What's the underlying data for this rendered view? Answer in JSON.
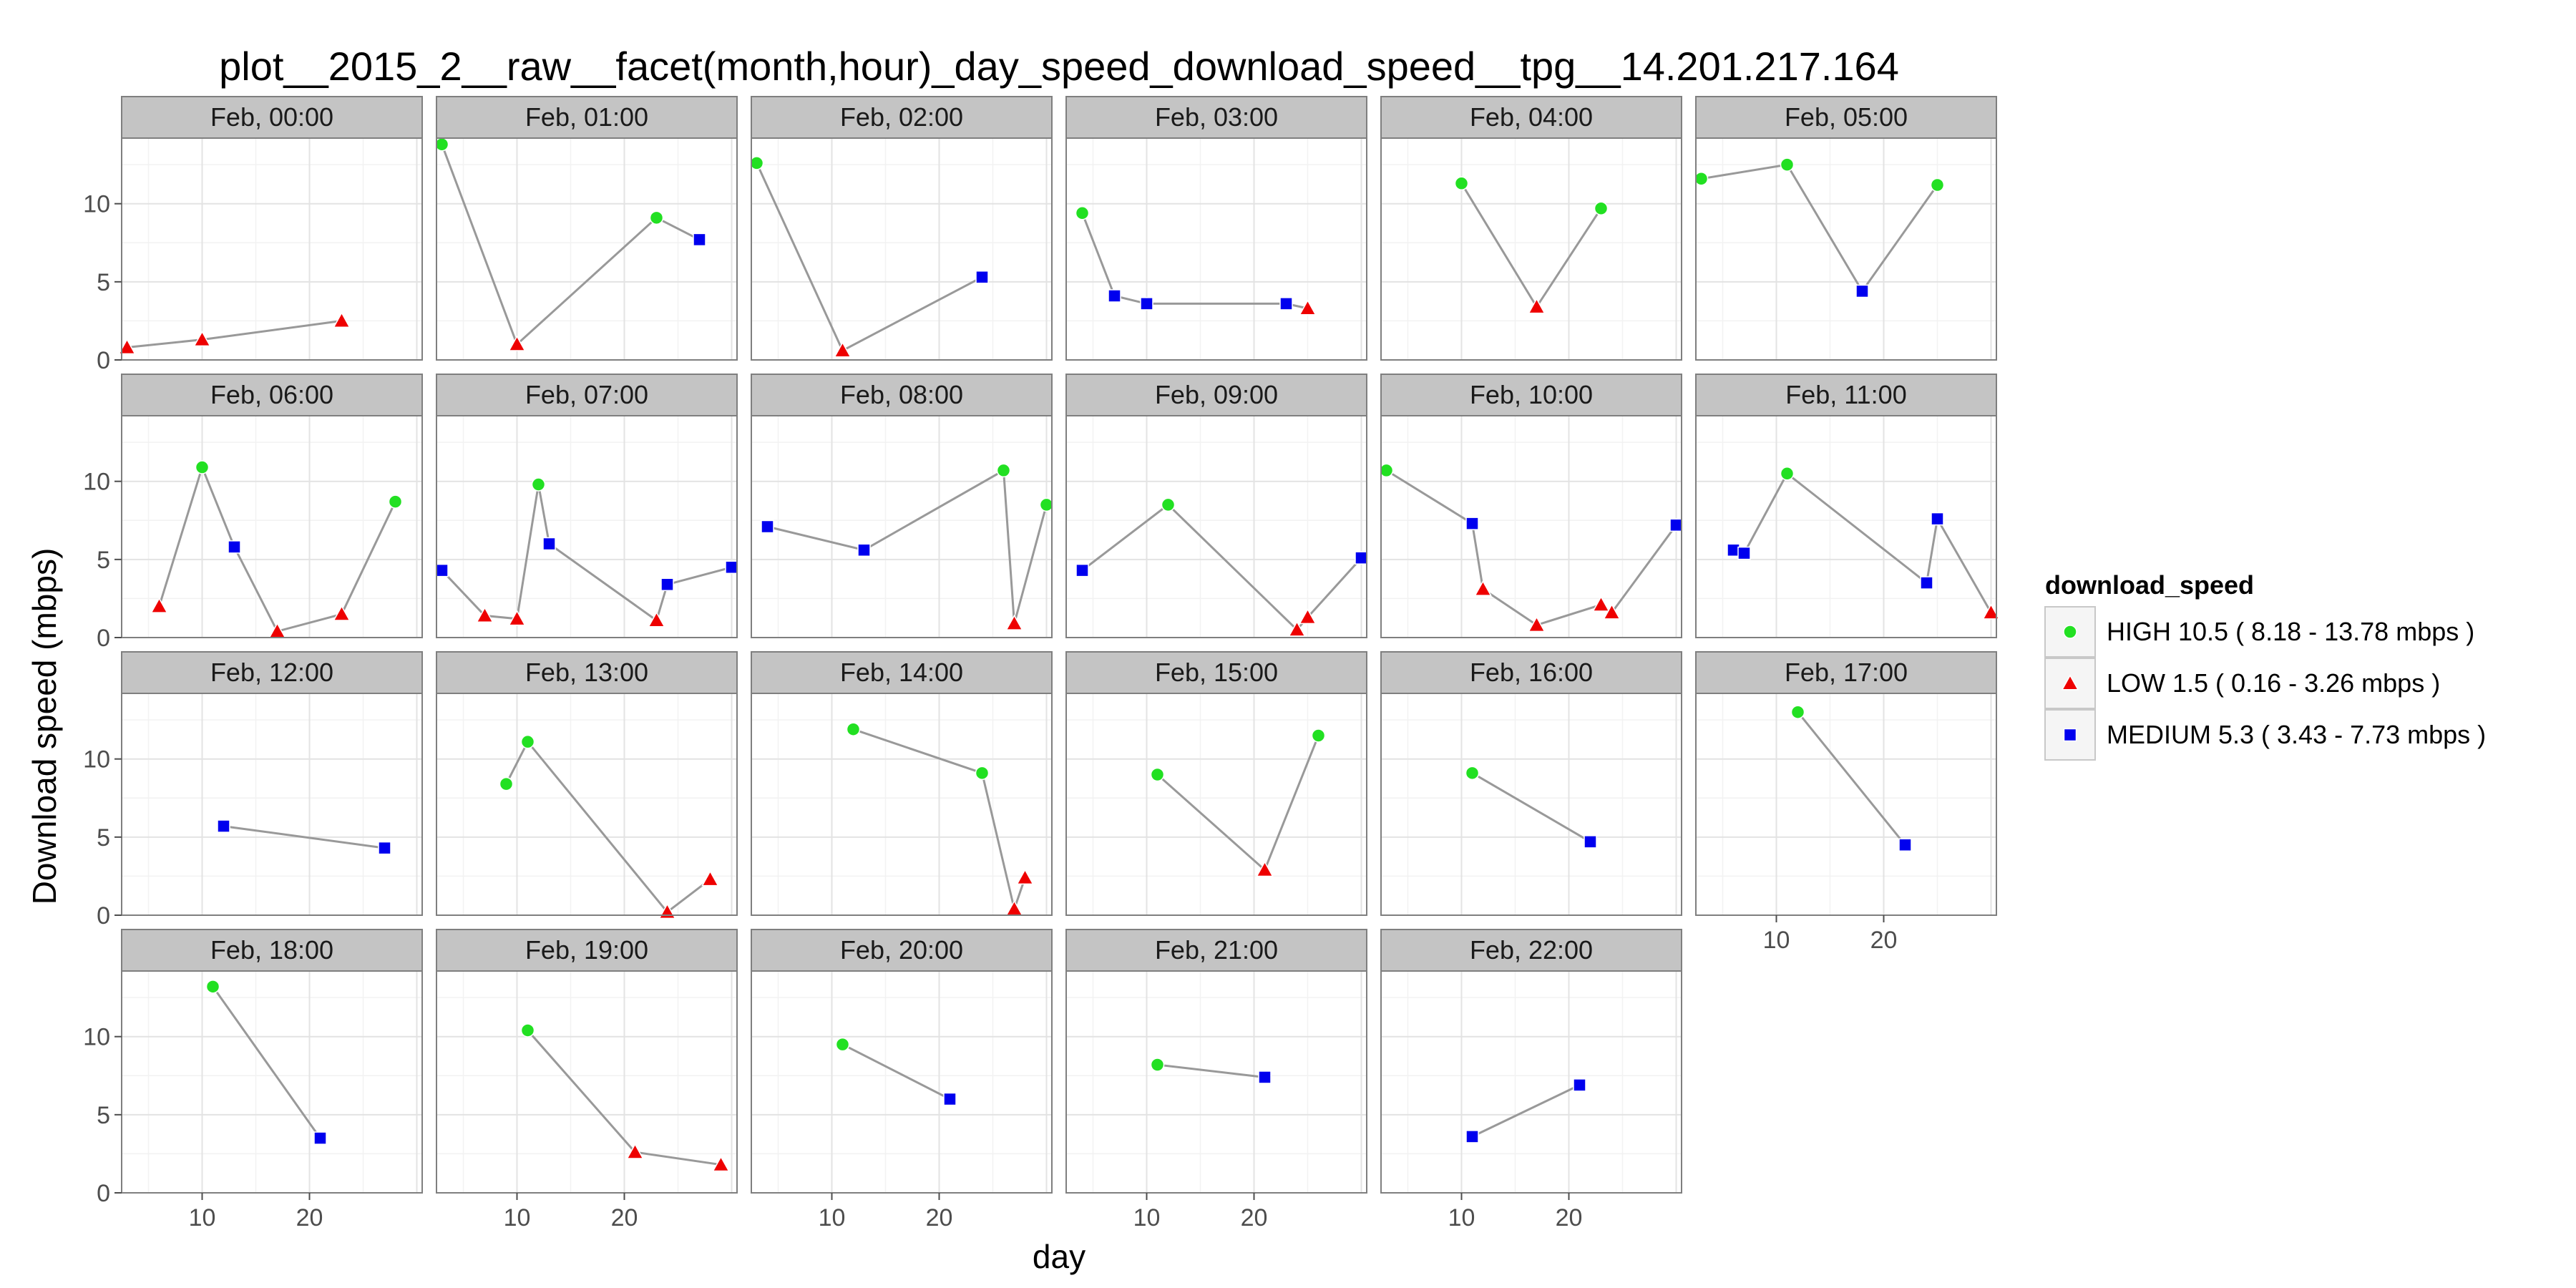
{
  "chart_data": {
    "type": "scatter",
    "title": "plot__2015_2__raw__facet(month,hour)_day_speed_download_speed__tpg__14.201.217.164",
    "xlabel": "day",
    "ylabel": "Download speed (mbps)",
    "xlim": [
      2.5,
      30.5
    ],
    "ylim": [
      0,
      14.2
    ],
    "x_ticks": [
      10,
      20
    ],
    "y_ticks": [
      0,
      5,
      10
    ],
    "grid": true,
    "facet_ncol": 6,
    "legend": {
      "title": "download_speed",
      "position": "right",
      "entries": [
        {
          "label": "HIGH 10.5 ( 8.18 - 13.78 mbps )",
          "color": "#22e022",
          "shape": "circle"
        },
        {
          "label": "LOW 1.5 ( 0.16 - 3.26 mbps )",
          "color": "#ee0000",
          "shape": "triangle"
        },
        {
          "label": "MEDIUM 5.3 ( 3.43 - 7.73 mbps )",
          "color": "#0000ee",
          "shape": "square"
        }
      ]
    },
    "line_color": "#999999",
    "panels": [
      {
        "label": "Feb, 00:00",
        "points": [
          [
            3,
            0.8,
            "LOW"
          ],
          [
            10,
            1.3,
            "LOW"
          ],
          [
            23,
            2.5,
            "LOW"
          ]
        ]
      },
      {
        "label": "Feb, 01:00",
        "points": [
          [
            3,
            13.8,
            "HIGH"
          ],
          [
            10,
            1.0,
            "LOW"
          ],
          [
            23,
            9.1,
            "HIGH"
          ],
          [
            27,
            7.7,
            "MEDIUM"
          ]
        ]
      },
      {
        "label": "Feb, 02:00",
        "points": [
          [
            3,
            12.6,
            "HIGH"
          ],
          [
            11,
            0.6,
            "LOW"
          ],
          [
            24,
            5.3,
            "MEDIUM"
          ]
        ]
      },
      {
        "label": "Feb, 03:00",
        "points": [
          [
            4,
            9.4,
            "HIGH"
          ],
          [
            7,
            4.1,
            "MEDIUM"
          ],
          [
            10,
            3.6,
            "MEDIUM"
          ],
          [
            23,
            3.6,
            "MEDIUM"
          ],
          [
            25,
            3.3,
            "LOW"
          ]
        ]
      },
      {
        "label": "Feb, 04:00",
        "points": [
          [
            10,
            11.3,
            "HIGH"
          ],
          [
            17,
            3.4,
            "LOW"
          ],
          [
            23,
            9.7,
            "HIGH"
          ]
        ]
      },
      {
        "label": "Feb, 05:00",
        "points": [
          [
            3,
            11.6,
            "HIGH"
          ],
          [
            11,
            12.5,
            "HIGH"
          ],
          [
            18,
            4.4,
            "MEDIUM"
          ],
          [
            25,
            11.2,
            "HIGH"
          ]
        ]
      },
      {
        "label": "Feb, 06:00",
        "points": [
          [
            6,
            2.0,
            "LOW"
          ],
          [
            10,
            10.9,
            "HIGH"
          ],
          [
            13,
            5.8,
            "MEDIUM"
          ],
          [
            17,
            0.4,
            "LOW"
          ],
          [
            23,
            1.5,
            "LOW"
          ],
          [
            28,
            8.7,
            "HIGH"
          ]
        ]
      },
      {
        "label": "Feb, 07:00",
        "points": [
          [
            3,
            4.3,
            "MEDIUM"
          ],
          [
            7,
            1.4,
            "LOW"
          ],
          [
            10,
            1.2,
            "LOW"
          ],
          [
            12,
            9.8,
            "HIGH"
          ],
          [
            13,
            6.0,
            "MEDIUM"
          ],
          [
            23,
            1.1,
            "LOW"
          ],
          [
            24,
            3.4,
            "MEDIUM"
          ],
          [
            30,
            4.5,
            "MEDIUM"
          ]
        ]
      },
      {
        "label": "Feb, 08:00",
        "points": [
          [
            4,
            7.1,
            "MEDIUM"
          ],
          [
            13,
            5.6,
            "MEDIUM"
          ],
          [
            26,
            10.7,
            "HIGH"
          ],
          [
            27,
            0.9,
            "LOW"
          ],
          [
            30,
            8.5,
            "HIGH"
          ]
        ]
      },
      {
        "label": "Feb, 09:00",
        "points": [
          [
            4,
            4.3,
            "MEDIUM"
          ],
          [
            12,
            8.5,
            "HIGH"
          ],
          [
            24,
            0.5,
            "LOW"
          ],
          [
            25,
            1.3,
            "LOW"
          ],
          [
            30,
            5.1,
            "MEDIUM"
          ]
        ]
      },
      {
        "label": "Feb, 10:00",
        "points": [
          [
            3,
            10.7,
            "HIGH"
          ],
          [
            11,
            7.3,
            "MEDIUM"
          ],
          [
            12,
            3.1,
            "LOW"
          ],
          [
            17,
            0.8,
            "LOW"
          ],
          [
            23,
            2.1,
            "LOW"
          ],
          [
            24,
            1.6,
            "LOW"
          ],
          [
            30,
            7.2,
            "MEDIUM"
          ]
        ]
      },
      {
        "label": "Feb, 11:00",
        "points": [
          [
            6,
            5.6,
            "MEDIUM"
          ],
          [
            7,
            5.4,
            "MEDIUM"
          ],
          [
            11,
            10.5,
            "HIGH"
          ],
          [
            24,
            3.5,
            "MEDIUM"
          ],
          [
            25,
            7.6,
            "MEDIUM"
          ],
          [
            30,
            1.6,
            "LOW"
          ]
        ]
      },
      {
        "label": "Feb, 12:00",
        "points": [
          [
            12,
            5.7,
            "MEDIUM"
          ],
          [
            27,
            4.3,
            "MEDIUM"
          ]
        ]
      },
      {
        "label": "Feb, 13:00",
        "points": [
          [
            9,
            8.4,
            "HIGH"
          ],
          [
            11,
            11.1,
            "HIGH"
          ],
          [
            24,
            0.2,
            "LOW"
          ],
          [
            28,
            2.3,
            "LOW"
          ]
        ]
      },
      {
        "label": "Feb, 14:00",
        "points": [
          [
            12,
            11.9,
            "HIGH"
          ],
          [
            24,
            9.1,
            "HIGH"
          ],
          [
            27,
            0.4,
            "LOW"
          ],
          [
            28,
            2.4,
            "LOW"
          ]
        ]
      },
      {
        "label": "Feb, 15:00",
        "points": [
          [
            11,
            9.0,
            "HIGH"
          ],
          [
            21,
            2.9,
            "LOW"
          ],
          [
            26,
            11.5,
            "HIGH"
          ]
        ]
      },
      {
        "label": "Feb, 16:00",
        "points": [
          [
            11,
            9.1,
            "HIGH"
          ],
          [
            22,
            4.7,
            "MEDIUM"
          ]
        ]
      },
      {
        "label": "Feb, 17:00",
        "points": [
          [
            12,
            13.0,
            "HIGH"
          ],
          [
            22,
            4.5,
            "MEDIUM"
          ]
        ]
      },
      {
        "label": "Feb, 18:00",
        "points": [
          [
            11,
            13.2,
            "HIGH"
          ],
          [
            21,
            3.5,
            "MEDIUM"
          ]
        ]
      },
      {
        "label": "Feb, 19:00",
        "points": [
          [
            11,
            10.4,
            "HIGH"
          ],
          [
            21,
            2.6,
            "LOW"
          ],
          [
            29,
            1.8,
            "LOW"
          ]
        ]
      },
      {
        "label": "Feb, 20:00",
        "points": [
          [
            11,
            9.5,
            "HIGH"
          ],
          [
            21,
            6.0,
            "MEDIUM"
          ]
        ]
      },
      {
        "label": "Feb, 21:00",
        "points": [
          [
            11,
            8.2,
            "HIGH"
          ],
          [
            21,
            7.4,
            "MEDIUM"
          ]
        ]
      },
      {
        "label": "Feb, 22:00",
        "points": [
          [
            11,
            3.6,
            "MEDIUM"
          ],
          [
            21,
            6.9,
            "MEDIUM"
          ]
        ]
      }
    ]
  }
}
